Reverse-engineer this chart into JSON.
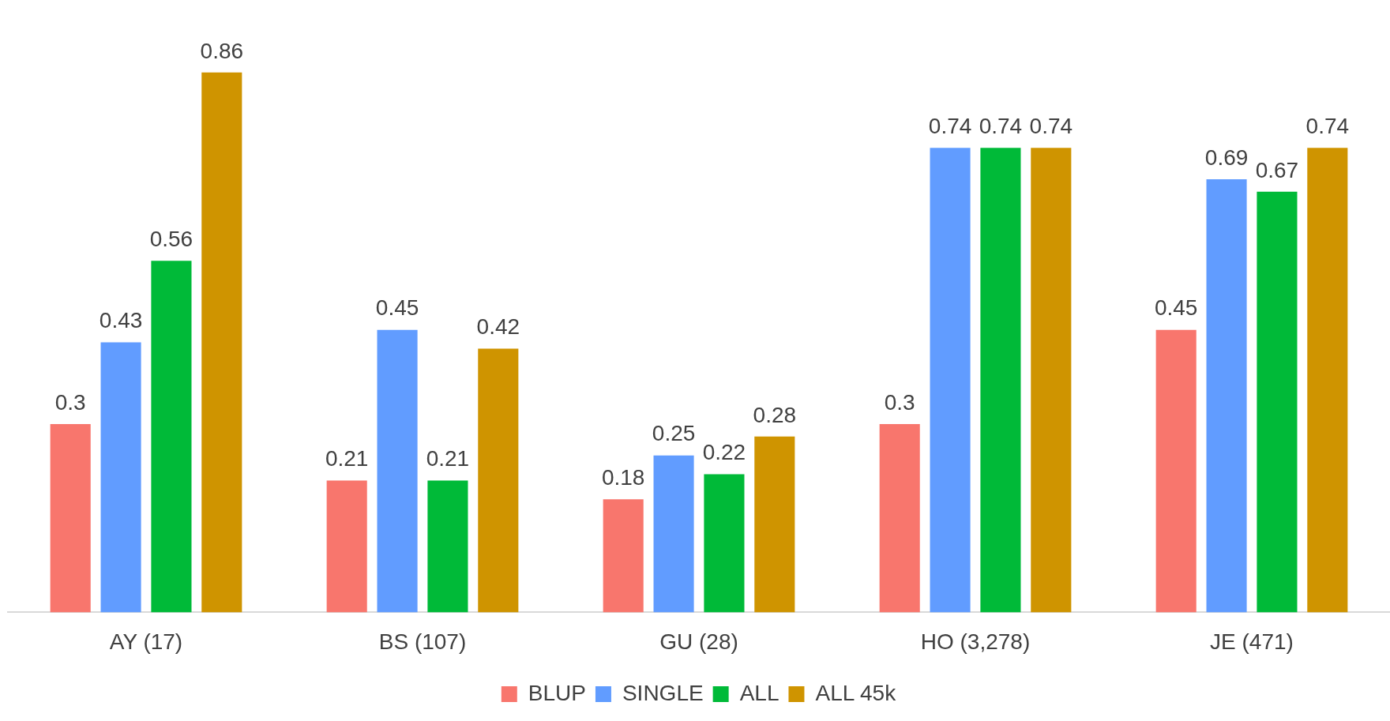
{
  "chart_data": {
    "type": "bar",
    "categories": [
      "AY (17)",
      "BS (107)",
      "GU (28)",
      "HO (3,278)",
      "JE (471)"
    ],
    "series": [
      {
        "name": "BLUP",
        "color": "#f8766d",
        "values": [
          0.3,
          0.21,
          0.18,
          0.3,
          0.45
        ]
      },
      {
        "name": "SINGLE",
        "color": "#619cff",
        "values": [
          0.43,
          0.45,
          0.25,
          0.74,
          0.69
        ]
      },
      {
        "name": "ALL",
        "color": "#00ba38",
        "values": [
          0.56,
          0.21,
          0.22,
          0.74,
          0.67
        ]
      },
      {
        "name": "ALL 45k",
        "color": "#cf9400",
        "values": [
          0.86,
          0.42,
          0.28,
          0.74,
          0.74
        ]
      }
    ],
    "data_labels": true,
    "legend": "bottom",
    "grid": false
  }
}
